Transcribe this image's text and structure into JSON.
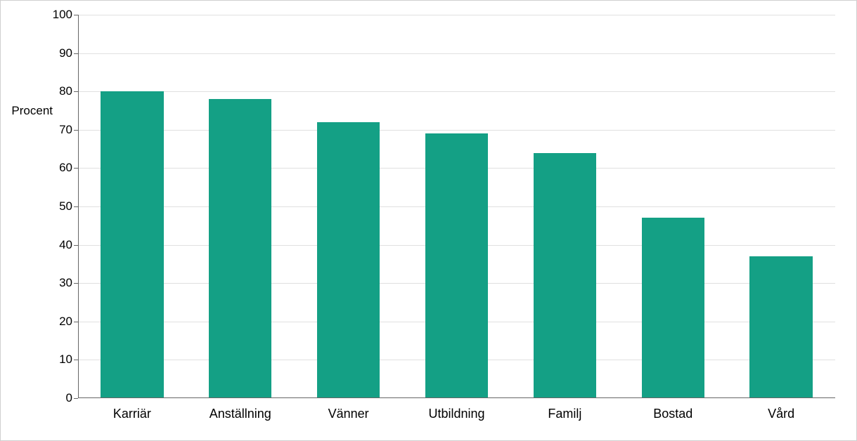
{
  "chart": {
    "type": "bar",
    "y_axis_title": "Procent",
    "categories": [
      "Karriär",
      "Anställning",
      "Vänner",
      "Utbildning",
      "Familj",
      "Bostad",
      "Vård"
    ],
    "values": [
      80,
      78,
      72,
      69,
      64,
      47,
      37
    ],
    "bar_color": "#14a085",
    "background_color": "#ffffff",
    "grid_color": "#e0e0e0",
    "border_color": "#d0d0d0",
    "axis_color": "#666666",
    "text_color": "#000000",
    "ylim": [
      0,
      100
    ],
    "ytick_step": 10,
    "ytick_labels": [
      "0",
      "10",
      "20",
      "30",
      "40",
      "50",
      "60",
      "70",
      "80",
      "90",
      "100"
    ],
    "tick_fontsize": 17,
    "category_fontsize": 18,
    "bar_width_ratio": 0.58
  }
}
